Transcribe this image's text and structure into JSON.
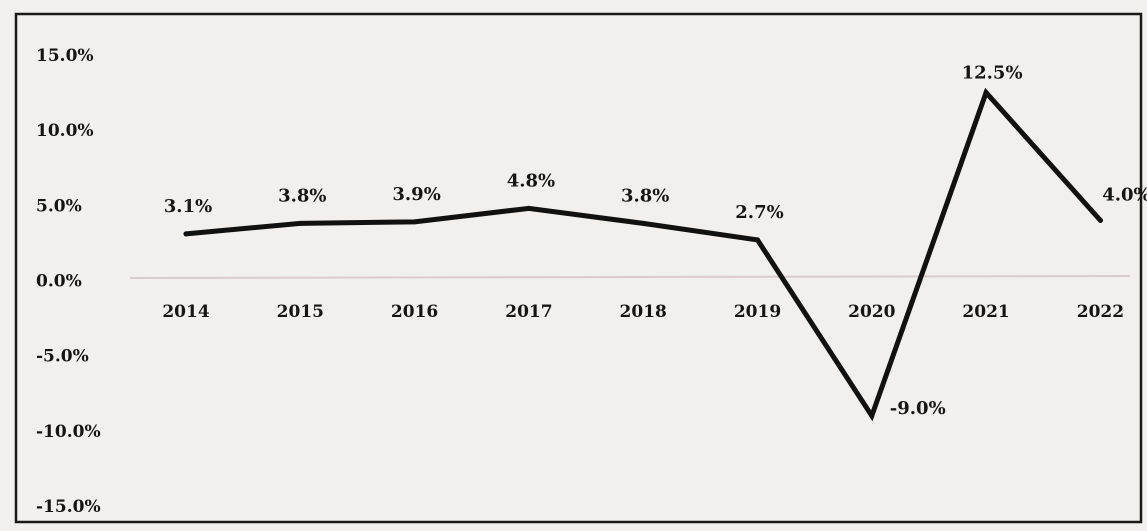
{
  "chart_data": {
    "type": "line",
    "title": "",
    "xlabel": "",
    "ylabel": "",
    "categories": [
      "2014",
      "2015",
      "2016",
      "2017",
      "2018",
      "2019",
      "2020",
      "2021",
      "2022"
    ],
    "series": [
      {
        "values": [
          3.1,
          3.8,
          3.9,
          4.8,
          3.8,
          2.7,
          -9.0,
          12.5,
          4.0
        ],
        "data_labels": [
          "3.1%",
          "3.8%",
          "3.9%",
          "4.8%",
          "3.8%",
          "2.7%",
          "-9.0%",
          "12.5%",
          "4.0%"
        ],
        "color": "#111111"
      }
    ],
    "ylim": [
      -15,
      15
    ],
    "yticks": [
      15,
      10,
      5,
      0,
      -5,
      -10,
      -15
    ],
    "ytick_labels": [
      "15.0%",
      "10.0%",
      "5.0%",
      "0.0%",
      "-5.0%",
      "-10.0%",
      "-15.0%"
    ],
    "grid": false,
    "legend": "none",
    "colors": {
      "background": "#f1f0ee",
      "frame": "#1a1a1a",
      "zero_line": "#d9cccc",
      "line": "#111111"
    }
  }
}
